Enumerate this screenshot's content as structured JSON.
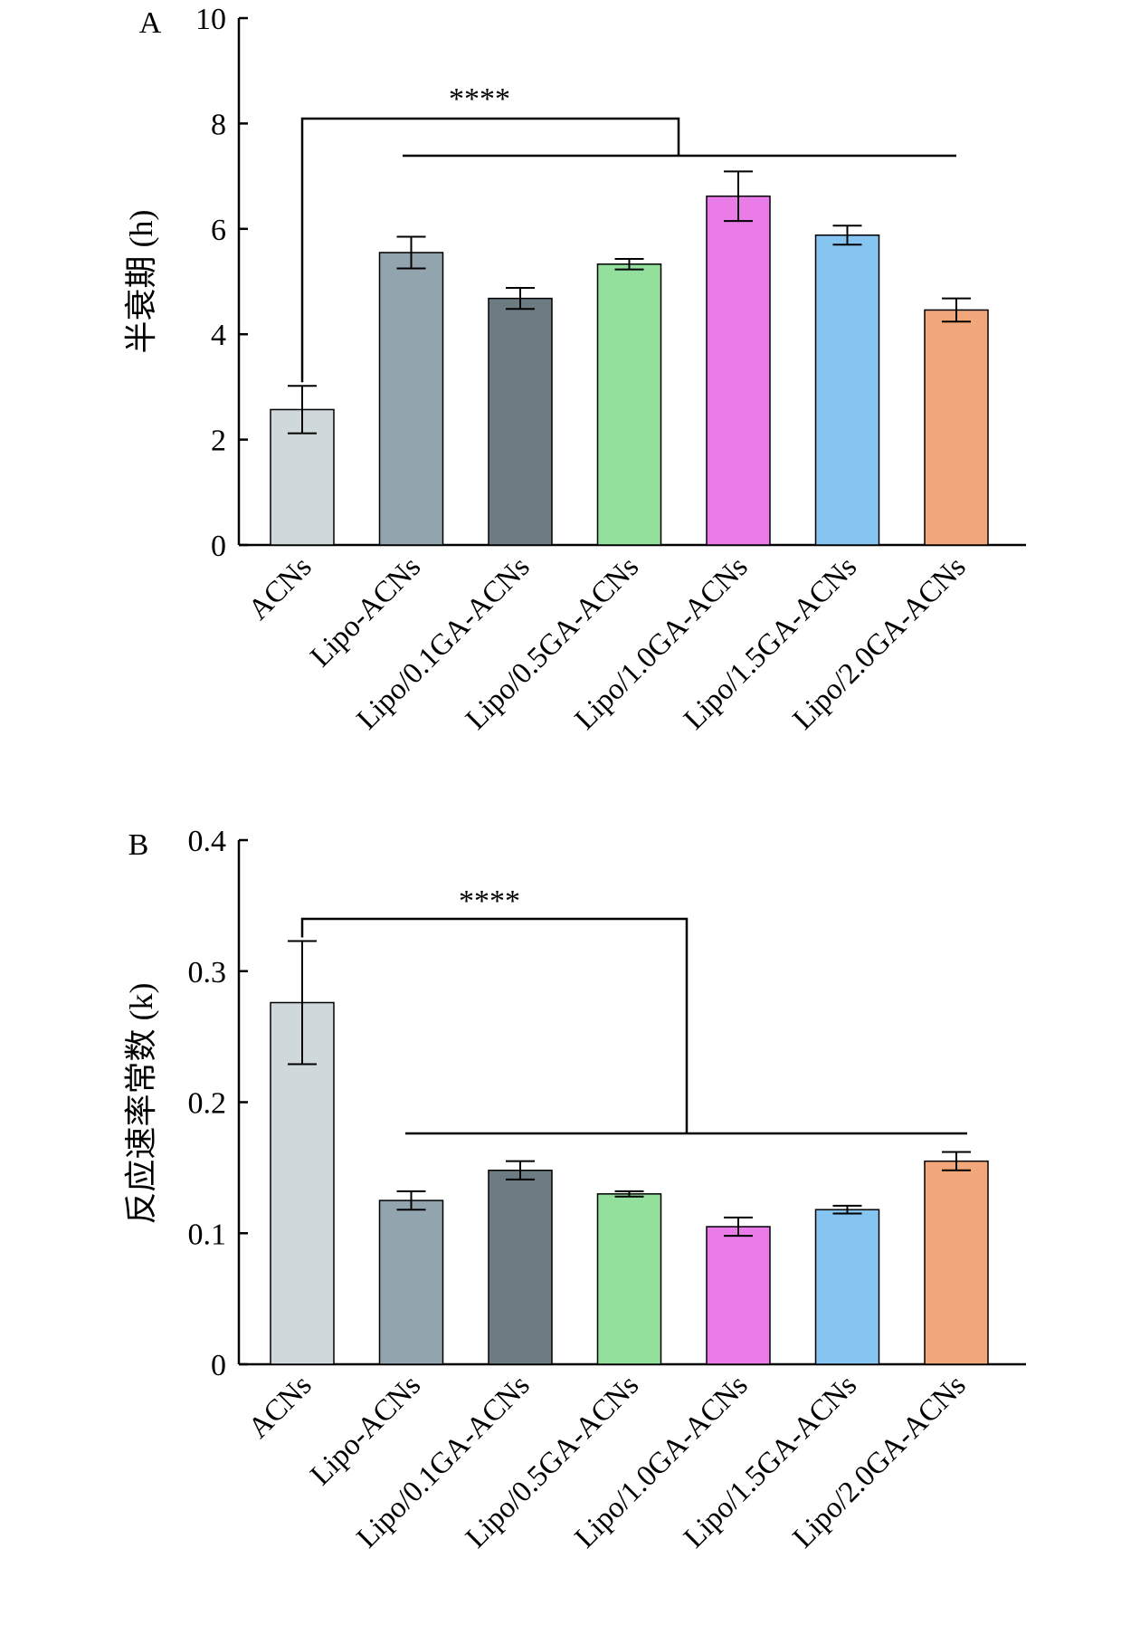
{
  "chart_data": [
    {
      "type": "bar",
      "panel_label": "A",
      "categories": [
        "ACNs",
        "Lipo-ACNs",
        "Lipo/0.1GA-ACNs",
        "Lipo/0.5GA-ACNs",
        "Lipo/1.0GA-ACNs",
        "Lipo/1.5GA-ACNs",
        "Lipo/2.0GA-ACNs"
      ],
      "values": [
        2.57,
        5.55,
        4.68,
        5.33,
        6.62,
        5.88,
        4.46
      ],
      "errors": [
        0.45,
        0.3,
        0.2,
        0.1,
        0.47,
        0.18,
        0.22
      ],
      "colors": [
        "#cfd8da",
        "#92a4ad",
        "#6d7c82",
        "#93e09d",
        "#e97ce9",
        "#86c4f1",
        "#f2a77b"
      ],
      "ylabel": "半衰期 (h)",
      "xlabel": "",
      "ylim": [
        0,
        10
      ],
      "yticks": [
        "0",
        "2",
        "4",
        "6",
        "8",
        "10"
      ],
      "grid": false,
      "significance": {
        "text": "****",
        "from": "ACNs",
        "to": [
          "Lipo-ACNs",
          "Lipo/2.0GA-ACNs"
        ]
      }
    },
    {
      "type": "bar",
      "panel_label": "B",
      "categories": [
        "ACNs",
        "Lipo-ACNs",
        "Lipo/0.1GA-ACNs",
        "Lipo/0.5GA-ACNs",
        "Lipo/1.0GA-ACNs",
        "Lipo/1.5GA-ACNs",
        "Lipo/2.0GA-ACNs"
      ],
      "values": [
        0.276,
        0.125,
        0.148,
        0.13,
        0.105,
        0.118,
        0.155
      ],
      "errors": [
        0.047,
        0.007,
        0.007,
        0.002,
        0.007,
        0.003,
        0.007
      ],
      "colors": [
        "#cfd8da",
        "#92a4ad",
        "#6d7c82",
        "#93e09d",
        "#e97ce9",
        "#86c4f1",
        "#f2a77b"
      ],
      "ylabel": "反应速率常数 (k)",
      "xlabel": "",
      "ylim": [
        0,
        0.4
      ],
      "yticks": [
        "0",
        "0.1",
        "0.2",
        "0.3",
        "0.4"
      ],
      "grid": false,
      "significance": {
        "text": "****",
        "from": "ACNs",
        "to": [
          "Lipo-ACNs",
          "Lipo/2.0GA-ACNs"
        ]
      }
    }
  ]
}
